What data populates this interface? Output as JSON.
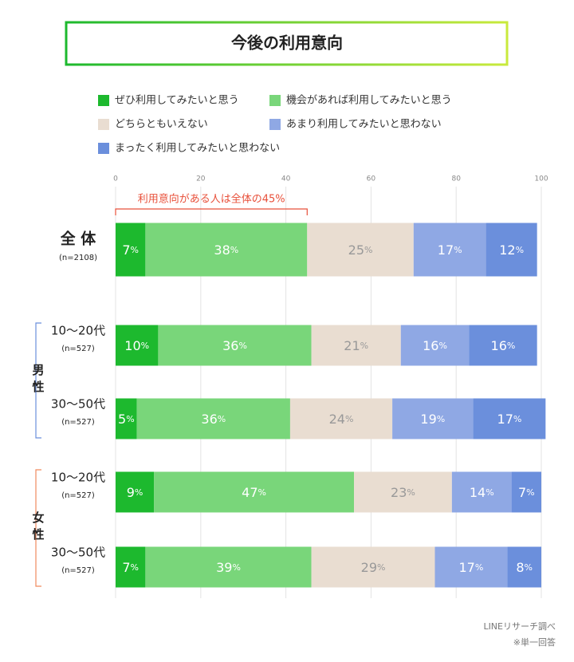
{
  "chart_data": {
    "type": "bar",
    "orientation": "horizontal",
    "stacked": true,
    "title": "今後の利用意向",
    "categories": [
      "全 体",
      "10〜20代",
      "30〜50代",
      "10〜20代",
      "30〜50代"
    ],
    "category_notes": [
      "(n=2108)",
      "(n=527)",
      "(n=527)",
      "(n=527)",
      "(n=527)"
    ],
    "groups": [
      {
        "label": "男性",
        "color": "#6b8fdc"
      },
      {
        "label": "女性",
        "color": "#f08a5d"
      }
    ],
    "xlim": [
      0,
      100
    ],
    "xticks": [
      0,
      20,
      40,
      60,
      80,
      100
    ],
    "grid": true,
    "series": [
      {
        "name": "ぜひ利用してみたいと思う",
        "color": "#1db92e",
        "label_color": "#ffffff",
        "values": [
          7,
          10,
          5,
          9,
          7
        ],
        "value_labels": [
          "7%",
          "10%",
          "5%",
          "9%",
          "7%"
        ]
      },
      {
        "name": "機会があれば利用してみたいと思う",
        "color": "#79d67a",
        "label_color": "#ffffff",
        "values": [
          38,
          36,
          36,
          47,
          39
        ],
        "value_labels": [
          "38%",
          "36%",
          "36%",
          "47%",
          "39%"
        ]
      },
      {
        "name": "どちらともいえない",
        "color": "#e9ddd1",
        "label_color": "#999999",
        "values": [
          25,
          21,
          24,
          23,
          29
        ],
        "value_labels": [
          "25%",
          "21%",
          "24%",
          "23%",
          "29%"
        ]
      },
      {
        "name": "あまり利用してみたいと思わない",
        "color": "#8fa8e4",
        "label_color": "#ffffff",
        "values": [
          17,
          16,
          19,
          14,
          17
        ],
        "value_labels": [
          "17%",
          "16%",
          "19%",
          "14%",
          "17%"
        ]
      },
      {
        "name": "まったく利用してみたいと思わない",
        "color": "#6b8fdc",
        "label_color": "#ffffff",
        "values": [
          12,
          16,
          17,
          7,
          8
        ],
        "value_labels": [
          "12%",
          "16%",
          "17%",
          "7%",
          "8%"
        ]
      }
    ],
    "annotation": {
      "text": "利用意向がある人は全体の45%",
      "color": "#e8503a"
    },
    "source": "LINEリサーチ調べ",
    "footnote": "※単一回答"
  }
}
